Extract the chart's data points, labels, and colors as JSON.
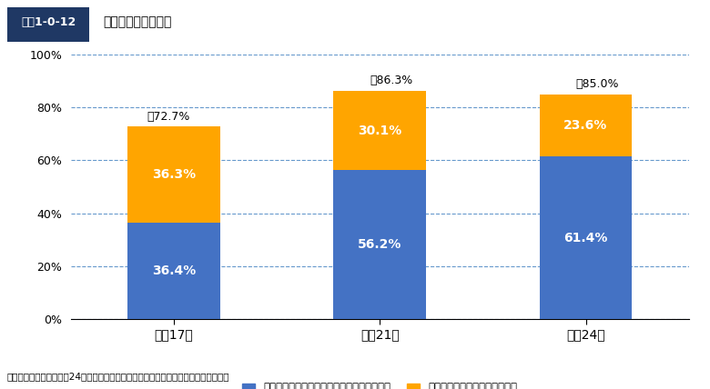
{
  "title_box": "図表1-0-12",
  "title_text": "病院の耐震化の状況",
  "categories": [
    "平成17年",
    "平成21年",
    "平成24年"
  ],
  "blue_values": [
    36.4,
    56.2,
    61.4
  ],
  "orange_values": [
    36.3,
    30.1,
    23.6
  ],
  "totals": [
    "計72.7%",
    "計86.3%",
    "計85.0%"
  ],
  "blue_color": "#4472C4",
  "orange_color": "#FFA500",
  "ylim": [
    0,
    100
  ],
  "yticks": [
    0,
    20,
    40,
    60,
    80,
    100
  ],
  "ytick_labels": [
    "0%",
    "20%",
    "40%",
    "60%",
    "80%",
    "100%"
  ],
  "legend_blue": "全ての建物に耐震性がある病院（耐震化率）",
  "legend_orange": "一部の建物に耐震性がある病院",
  "source": "出典：厚生労働省「平成24年度病院の耐震改修状況調査の結果」をもとに内閣府作成",
  "grid_color": "#6699CC",
  "background_color": "#FFFFFF",
  "bar_width": 0.45
}
